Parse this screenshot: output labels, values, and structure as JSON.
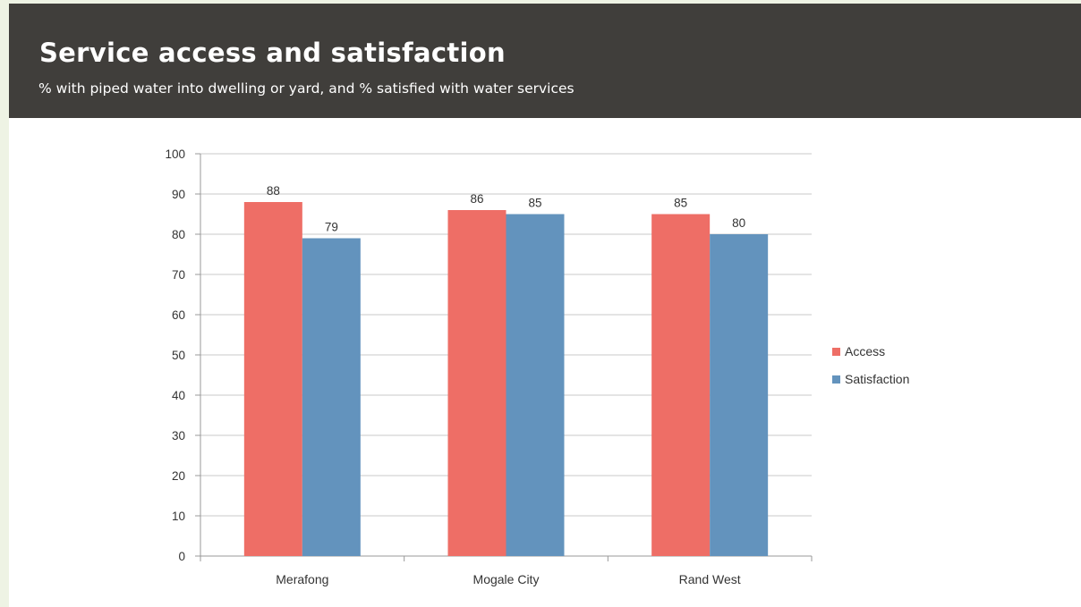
{
  "header": {
    "title": "Service access and satisfaction",
    "subtitle": "% with piped water into dwelling or yard, and % satisfied with water services"
  },
  "colors": {
    "header_bg": "#403e3b",
    "access": "#ee6e66",
    "satisfaction": "#6393bd",
    "gridline": "#c8c8c8",
    "page_bg": "#eef3e4"
  },
  "chart_data": {
    "type": "bar",
    "title": "",
    "xlabel": "",
    "ylabel": "",
    "categories": [
      "Merafong",
      "Mogale City",
      "Rand West"
    ],
    "series": [
      {
        "name": "Access",
        "values": [
          88,
          86,
          85
        ],
        "labels": [
          "88",
          "86",
          "85"
        ]
      },
      {
        "name": "Satisfaction",
        "values": [
          79,
          85,
          80
        ],
        "labels": [
          "79",
          "85",
          "80"
        ]
      }
    ],
    "ylim": [
      0,
      100
    ],
    "yticks": [
      "0",
      "10",
      "20",
      "30",
      "40",
      "50",
      "60",
      "70",
      "80",
      "90",
      "100"
    ],
    "grid": true,
    "legend_position": "right"
  }
}
